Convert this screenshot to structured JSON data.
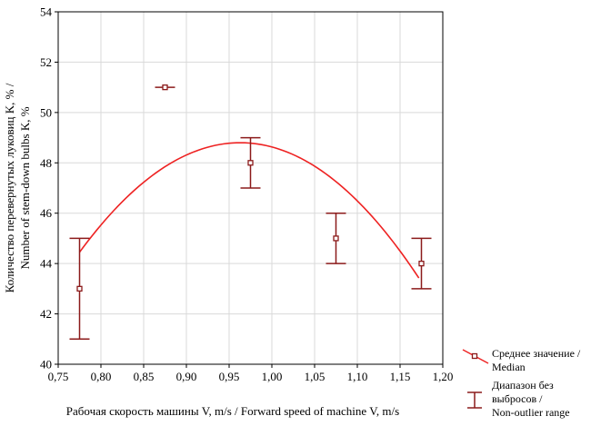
{
  "chart_data": {
    "type": "scatter",
    "xlabel": "Рабочая скорость машины V, m/s / Forward speed of machine V, m/s",
    "ylabel_line1": "Количество перевернутых луковиц K, % /",
    "ylabel_line2": "Number of stem-down bulbs K, %",
    "xlim": [
      0.75,
      1.2
    ],
    "ylim": [
      40,
      54
    ],
    "xticks": [
      "0,75",
      "0,80",
      "0,85",
      "0,90",
      "0,95",
      "1,00",
      "1,05",
      "1,10",
      "1,15",
      "1,20"
    ],
    "yticks": [
      "40",
      "42",
      "44",
      "46",
      "48",
      "50",
      "52",
      "54"
    ],
    "points": [
      {
        "x": 0.775,
        "median": 43,
        "min": 41,
        "max": 45
      },
      {
        "x": 0.875,
        "median": 51,
        "min": 51,
        "max": 51
      },
      {
        "x": 0.975,
        "median": 48,
        "min": 47,
        "max": 49
      },
      {
        "x": 1.075,
        "median": 45,
        "min": 44,
        "max": 46
      },
      {
        "x": 1.175,
        "median": 44,
        "min": 43,
        "max": 45
      }
    ],
    "fit_curve": {
      "x_range": [
        0.775,
        1.172
      ],
      "vertex_x": 0.963,
      "vertex_y": 48.8,
      "start_y": 44.45,
      "color": "#ee2222"
    },
    "marker_color": "#8b1a1a",
    "legend": [
      {
        "line1": "Среднее значение /",
        "line2": "Median",
        "line3": ""
      },
      {
        "line1": "Диапазон без",
        "line2": "выбросов /",
        "line3": "Non-outlier range"
      }
    ],
    "grid": true,
    "legend_position": "bottom-right"
  }
}
